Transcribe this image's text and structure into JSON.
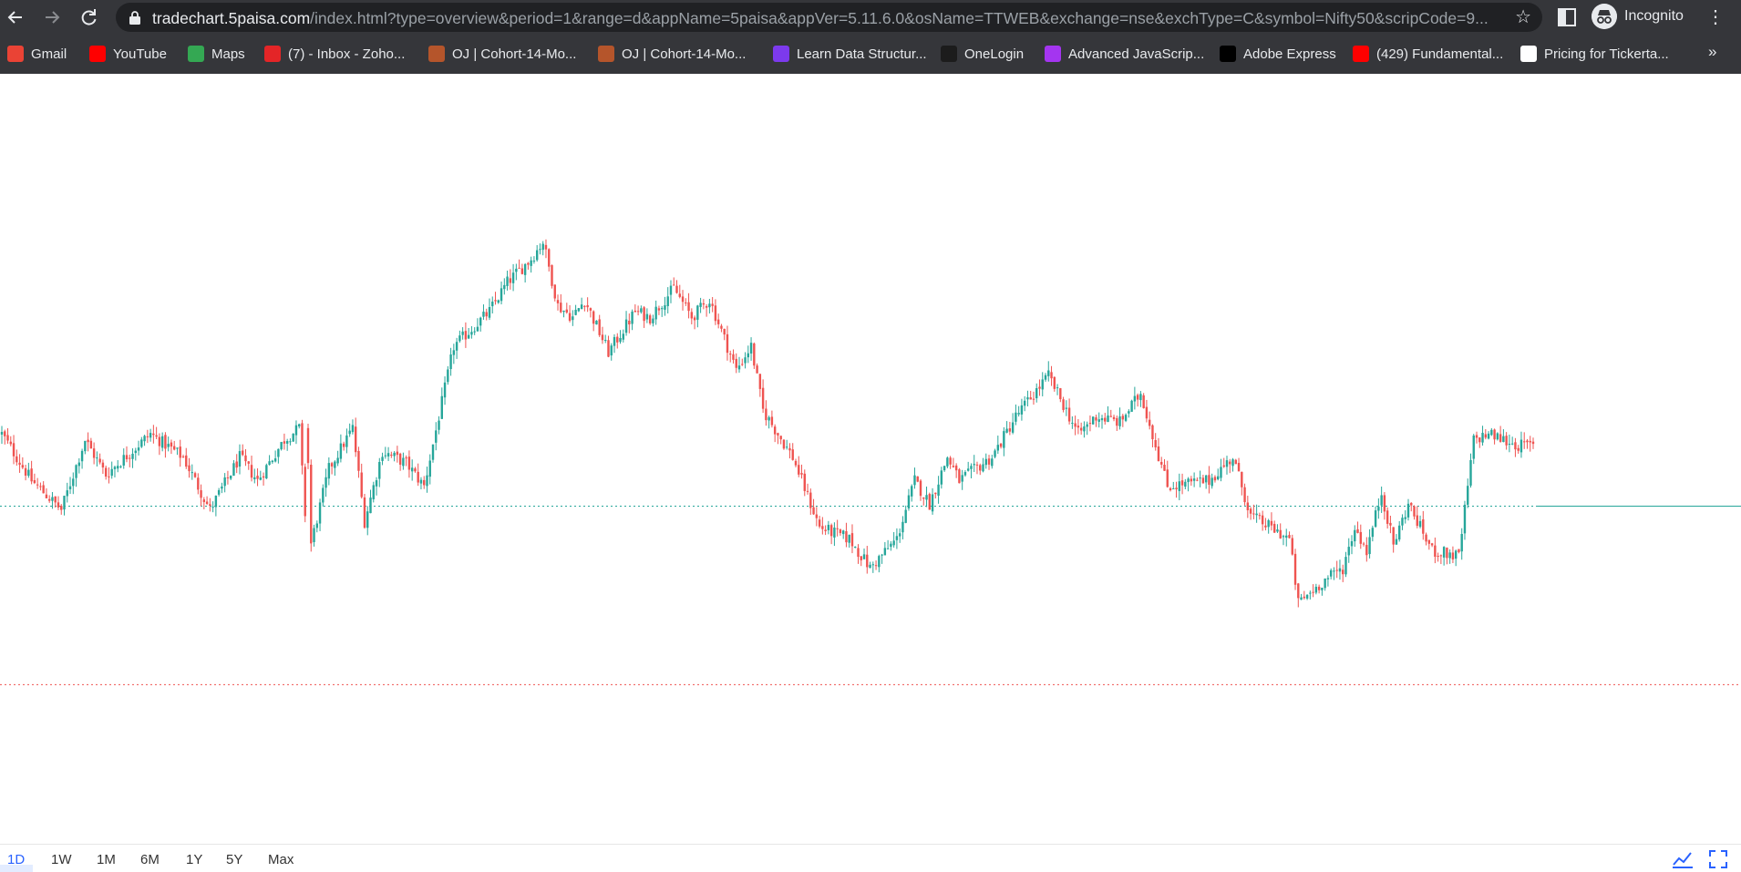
{
  "browser": {
    "url_host": "tradechart.5paisa.com",
    "url_path": "/index.html?type=overview&period=1&range=d&appName=5paisa&appVer=5.11.6.0&osName=TTWEB&exchange=nse&exchType=C&symbol=Nifty50&scripCode=9...",
    "profile_label": "Incognito",
    "more_bookmarks": "»",
    "bookmarks": [
      {
        "label": "Gmail",
        "icon": "gmail-icon",
        "color": "#ea4335"
      },
      {
        "label": "YouTube",
        "icon": "youtube-icon",
        "color": "#ff0000"
      },
      {
        "label": "Maps",
        "icon": "maps-icon",
        "color": "#34a853"
      },
      {
        "label": "(7) - Inbox - Zoho...",
        "icon": "zoho-icon",
        "color": "#e42527"
      },
      {
        "label": "OJ | Cohort-14-Mo...",
        "icon": "oj-icon",
        "color": "#b5552b"
      },
      {
        "label": "OJ | Cohort-14-Mo...",
        "icon": "oj-icon",
        "color": "#b5552b"
      },
      {
        "label": "Learn Data Structur...",
        "icon": "learn-icon",
        "color": "#7c3aed"
      },
      {
        "label": "OneLogin",
        "icon": "onelogin-icon",
        "color": "#1c1c1c"
      },
      {
        "label": "Advanced JavaScrip...",
        "icon": "js-course-icon",
        "color": "#a435f0"
      },
      {
        "label": "Adobe Express",
        "icon": "adobe-icon",
        "color": "#000000"
      },
      {
        "label": "(429) Fundamental...",
        "icon": "youtube-icon",
        "color": "#ff0000"
      },
      {
        "label": "Pricing for Tickerta...",
        "icon": "tickertape-icon",
        "color": "#ffffff"
      }
    ]
  },
  "chart": {
    "up_color": "#26a69a",
    "down_color": "#ef5350",
    "ref_line_1_color": "#26a69a",
    "ref_line_2_color": "#ef5350"
  },
  "chart_data": {
    "type": "candlestick",
    "y_range_px_reference": "price-relative-0-to-100",
    "ylim": [
      0,
      100
    ],
    "reference_levels": [
      {
        "value": 44.6,
        "style": "dotted",
        "color": "#26a69a"
      },
      {
        "value": 14.0,
        "style": "dotted",
        "color": "#ef5350"
      }
    ],
    "path": [
      [
        0,
        57
      ],
      [
        10,
        49
      ],
      [
        20,
        44
      ],
      [
        28,
        56
      ],
      [
        35,
        50
      ],
      [
        50,
        57
      ],
      [
        61,
        53
      ],
      [
        70,
        44
      ],
      [
        80,
        53
      ],
      [
        86,
        49
      ],
      [
        95,
        56
      ],
      [
        100,
        58
      ],
      [
        103,
        36
      ],
      [
        110,
        51
      ],
      [
        118,
        58
      ],
      [
        122,
        42
      ],
      [
        128,
        54
      ],
      [
        136,
        52
      ],
      [
        142,
        48
      ],
      [
        152,
        72
      ],
      [
        164,
        78
      ],
      [
        170,
        83
      ],
      [
        178,
        87
      ],
      [
        182,
        90
      ],
      [
        187,
        79
      ],
      [
        192,
        77
      ],
      [
        196,
        80
      ],
      [
        204,
        71
      ],
      [
        213,
        78
      ],
      [
        218,
        77
      ],
      [
        226,
        82
      ],
      [
        232,
        77
      ],
      [
        238,
        80
      ],
      [
        247,
        68
      ],
      [
        252,
        72
      ],
      [
        256,
        61
      ],
      [
        266,
        53
      ],
      [
        275,
        41
      ],
      [
        285,
        39
      ],
      [
        292,
        34
      ],
      [
        301,
        39
      ],
      [
        307,
        49
      ],
      [
        312,
        45
      ],
      [
        318,
        53
      ],
      [
        322,
        49
      ],
      [
        333,
        53
      ],
      [
        341,
        60
      ],
      [
        352,
        67
      ],
      [
        357,
        62
      ],
      [
        362,
        57
      ],
      [
        368,
        60
      ],
      [
        376,
        59
      ],
      [
        383,
        64
      ],
      [
        392,
        48
      ],
      [
        406,
        49
      ],
      [
        414,
        53
      ],
      [
        420,
        43
      ],
      [
        433,
        39
      ],
      [
        436,
        28
      ],
      [
        445,
        32
      ],
      [
        451,
        34
      ],
      [
        455,
        41
      ],
      [
        459,
        37
      ],
      [
        464,
        47
      ],
      [
        468,
        38
      ],
      [
        473,
        45
      ],
      [
        481,
        37
      ],
      [
        490,
        36
      ],
      [
        495,
        56
      ],
      [
        500,
        57
      ],
      [
        510,
        55
      ]
    ],
    "x_max": 515
  },
  "range_selector": {
    "options": [
      "1D",
      "1W",
      "1M",
      "6M",
      "1Y",
      "5Y",
      "Max"
    ],
    "active": "1D"
  }
}
